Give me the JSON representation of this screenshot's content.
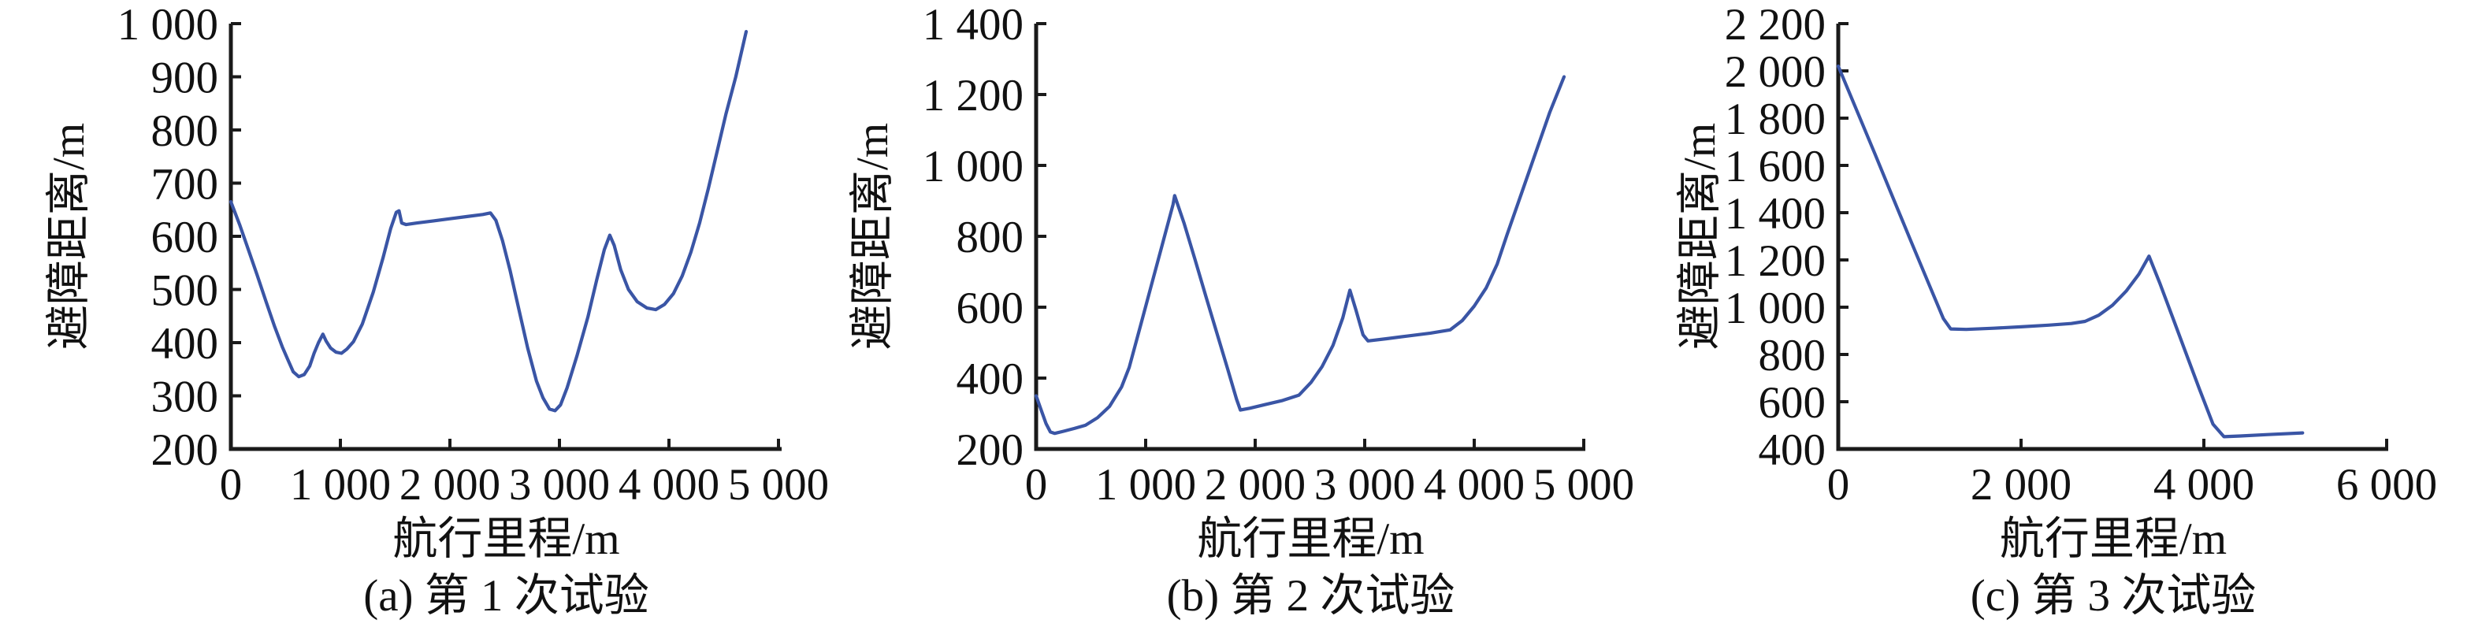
{
  "figure": {
    "background": "#ffffff",
    "line_color": "#3a55a5",
    "axis_color": "#1a1a1a",
    "text_color": "#111111"
  },
  "chart_data": [
    {
      "type": "line",
      "caption": "(a) 第 1 次试验",
      "xlabel": "航行里程/m",
      "ylabel": "避障距离/m",
      "xlim": [
        0,
        5000
      ],
      "ylim": [
        200,
        1000
      ],
      "grid": false,
      "legend": "none",
      "x_ticks": [
        0,
        1000,
        2000,
        3000,
        4000,
        5000
      ],
      "x_tick_labels": [
        "0",
        "1 000",
        "2 000",
        "3 000",
        "4 000",
        "5 000"
      ],
      "y_ticks": [
        200,
        300,
        400,
        500,
        600,
        700,
        800,
        900,
        1000
      ],
      "y_tick_labels": [
        "200",
        "300",
        "400",
        "500",
        "600",
        "700",
        "800",
        "900",
        "1 000"
      ],
      "series": [
        {
          "name": "避障距离",
          "points": [
            [
              0,
              665
            ],
            [
              80,
              622
            ],
            [
              160,
              575
            ],
            [
              240,
              527
            ],
            [
              320,
              478
            ],
            [
              400,
              430
            ],
            [
              470,
              392
            ],
            [
              520,
              368
            ],
            [
              570,
              345
            ],
            [
              620,
              336
            ],
            [
              670,
              340
            ],
            [
              720,
              356
            ],
            [
              760,
              380
            ],
            [
              800,
              400
            ],
            [
              840,
              416
            ],
            [
              870,
              403
            ],
            [
              910,
              390
            ],
            [
              960,
              382
            ],
            [
              1010,
              380
            ],
            [
              1060,
              388
            ],
            [
              1120,
              402
            ],
            [
              1200,
              435
            ],
            [
              1300,
              495
            ],
            [
              1390,
              560
            ],
            [
              1460,
              615
            ],
            [
              1510,
              645
            ],
            [
              1535,
              648
            ],
            [
              1560,
              625
            ],
            [
              1600,
              622
            ],
            [
              1700,
              625
            ],
            [
              1850,
              629
            ],
            [
              2000,
              633
            ],
            [
              2150,
              637
            ],
            [
              2300,
              641
            ],
            [
              2370,
              644
            ],
            [
              2420,
              630
            ],
            [
              2480,
              592
            ],
            [
              2550,
              535
            ],
            [
              2630,
              462
            ],
            [
              2710,
              390
            ],
            [
              2790,
              328
            ],
            [
              2850,
              296
            ],
            [
              2910,
              275
            ],
            [
              2960,
              272
            ],
            [
              3010,
              283
            ],
            [
              3070,
              315
            ],
            [
              3160,
              375
            ],
            [
              3260,
              448
            ],
            [
              3340,
              518
            ],
            [
              3410,
              575
            ],
            [
              3460,
              602
            ],
            [
              3500,
              583
            ],
            [
              3560,
              537
            ],
            [
              3630,
              500
            ],
            [
              3710,
              477
            ],
            [
              3800,
              465
            ],
            [
              3880,
              462
            ],
            [
              3960,
              472
            ],
            [
              4040,
              492
            ],
            [
              4120,
              525
            ],
            [
              4200,
              570
            ],
            [
              4280,
              625
            ],
            [
              4360,
              690
            ],
            [
              4440,
              760
            ],
            [
              4520,
              830
            ],
            [
              4610,
              900
            ],
            [
              4705,
              985
            ]
          ]
        }
      ]
    },
    {
      "type": "line",
      "caption": "(b) 第 2 次试验",
      "xlabel": "航行里程/m",
      "ylabel": "避障距离/m",
      "xlim": [
        0,
        5000
      ],
      "ylim": [
        200,
        1400
      ],
      "grid": false,
      "legend": "none",
      "x_ticks": [
        0,
        1000,
        2000,
        3000,
        4000,
        5000
      ],
      "x_tick_labels": [
        "0",
        "1 000",
        "2 000",
        "3 000",
        "4 000",
        "5 000"
      ],
      "y_ticks": [
        200,
        400,
        600,
        800,
        1000,
        1200,
        1400
      ],
      "y_tick_labels": [
        "200",
        "400",
        "600",
        "800",
        "1 000",
        "1 200",
        "1 400"
      ],
      "series": [
        {
          "name": "避障距离",
          "points": [
            [
              0,
              350
            ],
            [
              40,
              315
            ],
            [
              90,
              272
            ],
            [
              130,
              248
            ],
            [
              170,
              244
            ],
            [
              250,
              250
            ],
            [
              350,
              258
            ],
            [
              450,
              267
            ],
            [
              560,
              288
            ],
            [
              670,
              320
            ],
            [
              780,
              375
            ],
            [
              850,
              430
            ],
            [
              950,
              545
            ],
            [
              1050,
              660
            ],
            [
              1150,
              775
            ],
            [
              1250,
              890
            ],
            [
              1265,
              915
            ],
            [
              1350,
              838
            ],
            [
              1450,
              735
            ],
            [
              1550,
              630
            ],
            [
              1650,
              527
            ],
            [
              1750,
              424
            ],
            [
              1830,
              340
            ],
            [
              1865,
              310
            ],
            [
              1950,
              315
            ],
            [
              2100,
              326
            ],
            [
              2250,
              337
            ],
            [
              2400,
              352
            ],
            [
              2510,
              388
            ],
            [
              2610,
              432
            ],
            [
              2710,
              492
            ],
            [
              2800,
              570
            ],
            [
              2865,
              648
            ],
            [
              2920,
              592
            ],
            [
              2985,
              522
            ],
            [
              3030,
              505
            ],
            [
              3200,
              511
            ],
            [
              3400,
              519
            ],
            [
              3600,
              527
            ],
            [
              3780,
              536
            ],
            [
              3890,
              562
            ],
            [
              4000,
              603
            ],
            [
              4110,
              655
            ],
            [
              4210,
              722
            ],
            [
              4300,
              805
            ],
            [
              4430,
              920
            ],
            [
              4560,
              1035
            ],
            [
              4690,
              1150
            ],
            [
              4820,
              1250
            ]
          ]
        }
      ]
    },
    {
      "type": "line",
      "caption": "(c) 第 3 次试验",
      "xlabel": "航行里程/m",
      "ylabel": "避障距离/m",
      "xlim": [
        0,
        6000
      ],
      "ylim": [
        400,
        2200
      ],
      "grid": false,
      "legend": "none",
      "x_ticks": [
        0,
        2000,
        4000,
        6000
      ],
      "x_tick_labels": [
        "0",
        "2 000",
        "4 000",
        "6 000"
      ],
      "y_ticks": [
        400,
        600,
        800,
        1000,
        1200,
        1400,
        1600,
        1800,
        2000,
        2200
      ],
      "y_tick_labels": [
        "400",
        "600",
        "800",
        "1 000",
        "1 200",
        "1 400",
        "1 600",
        "1 800",
        "2 000",
        "2 200"
      ],
      "series": [
        {
          "name": "避障距离",
          "points": [
            [
              0,
              2020
            ],
            [
              200,
              1835
            ],
            [
              400,
              1650
            ],
            [
              600,
              1462
            ],
            [
              800,
              1275
            ],
            [
              1000,
              1090
            ],
            [
              1150,
              952
            ],
            [
              1230,
              908
            ],
            [
              1400,
              906
            ],
            [
              1700,
              911
            ],
            [
              2000,
              917
            ],
            [
              2300,
              924
            ],
            [
              2550,
              931
            ],
            [
              2700,
              940
            ],
            [
              2850,
              966
            ],
            [
              3000,
              1008
            ],
            [
              3150,
              1068
            ],
            [
              3290,
              1140
            ],
            [
              3400,
              1216
            ],
            [
              3520,
              1100
            ],
            [
              3660,
              955
            ],
            [
              3800,
              810
            ],
            [
              3950,
              655
            ],
            [
              4100,
              505
            ],
            [
              4220,
              452
            ],
            [
              4400,
              455
            ],
            [
              4700,
              461
            ],
            [
              5080,
              468
            ]
          ]
        }
      ]
    }
  ]
}
